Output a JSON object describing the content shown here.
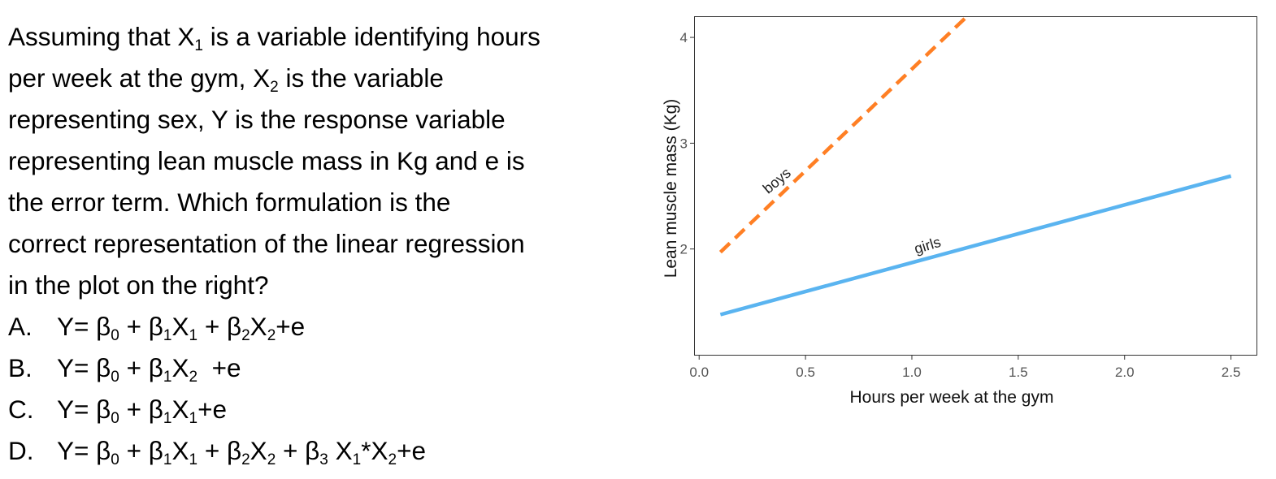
{
  "question": {
    "lines": [
      [
        {
          "t": "Assuming that X"
        },
        {
          "t": "1",
          "sub": true
        },
        {
          "t": " is a variable identifying hours"
        }
      ],
      [
        {
          "t": "per week at the gym, X"
        },
        {
          "t": "2",
          "sub": true
        },
        {
          "t": " is the variable"
        }
      ],
      [
        {
          "t": "representing sex, Y is the response variable"
        }
      ],
      [
        {
          "t": "representing lean muscle mass in Kg and e is"
        }
      ],
      [
        {
          "t": "the error term. Which formulation is the"
        }
      ],
      [
        {
          "t": "correct representation of the linear regression"
        }
      ],
      [
        {
          "t": "in the plot on the right?"
        }
      ]
    ],
    "options": [
      {
        "letter": "A.",
        "parts": [
          {
            "t": "Y= β"
          },
          {
            "t": "0",
            "sub": true
          },
          {
            "t": " + β"
          },
          {
            "t": "1",
            "sub": true
          },
          {
            "t": "X"
          },
          {
            "t": "1",
            "sub": true
          },
          {
            "t": " + β"
          },
          {
            "t": "2",
            "sub": true
          },
          {
            "t": "X"
          },
          {
            "t": "2",
            "sub": true
          },
          {
            "t": "+e"
          }
        ]
      },
      {
        "letter": "B.",
        "parts": [
          {
            "t": "Y= β"
          },
          {
            "t": "0",
            "sub": true
          },
          {
            "t": " + β"
          },
          {
            "t": "1",
            "sub": true
          },
          {
            "t": "X"
          },
          {
            "t": "2",
            "sub": true
          },
          {
            "t": "  +e"
          }
        ]
      },
      {
        "letter": "C.",
        "parts": [
          {
            "t": "Y= β"
          },
          {
            "t": "0",
            "sub": true
          },
          {
            "t": " + β"
          },
          {
            "t": "1",
            "sub": true
          },
          {
            "t": "X"
          },
          {
            "t": "1",
            "sub": true
          },
          {
            "t": "+e"
          }
        ]
      },
      {
        "letter": "D.",
        "parts": [
          {
            "t": "Y= β"
          },
          {
            "t": "0",
            "sub": true
          },
          {
            "t": " + β"
          },
          {
            "t": "1",
            "sub": true
          },
          {
            "t": "X"
          },
          {
            "t": "1",
            "sub": true
          },
          {
            "t": " + β"
          },
          {
            "t": "2",
            "sub": true
          },
          {
            "t": "X"
          },
          {
            "t": "2",
            "sub": true
          },
          {
            "t": " + β"
          },
          {
            "t": "3",
            "sub": true
          },
          {
            "t": " X"
          },
          {
            "t": "1",
            "sub": true
          },
          {
            "t": "*X"
          },
          {
            "t": "2",
            "sub": true
          },
          {
            "t": "+e"
          }
        ]
      }
    ]
  },
  "chart_data": {
    "type": "line",
    "title": "",
    "xlabel": "Hours per week at the gym",
    "ylabel": "Lean muscle mass (Kg)",
    "xlim": [
      -0.02,
      2.62
    ],
    "ylim": [
      1.0,
      4.2
    ],
    "xticks": [
      0.0,
      0.5,
      1.0,
      1.5,
      2.0,
      2.5
    ],
    "xtick_labels": [
      "0.0",
      "0.5",
      "1.0",
      "1.5",
      "2.0",
      "2.5"
    ],
    "yticks": [
      2,
      3,
      4
    ],
    "ytick_labels": [
      "2",
      "3",
      "4"
    ],
    "grid": false,
    "legend": "none",
    "series": [
      {
        "name": "boys",
        "color": "#ff7f24",
        "style": "dashed",
        "x": [
          0.1,
          1.26
        ],
        "y": [
          1.97,
          4.2
        ],
        "label_at": {
          "x": 0.38,
          "y": 2.61,
          "angle": -40
        }
      },
      {
        "name": "girls",
        "color": "#5ab4f0",
        "style": "solid",
        "x": [
          0.1,
          2.5
        ],
        "y": [
          1.38,
          2.69
        ],
        "label_at": {
          "x": 1.08,
          "y": 1.99,
          "angle": -17
        }
      }
    ]
  }
}
